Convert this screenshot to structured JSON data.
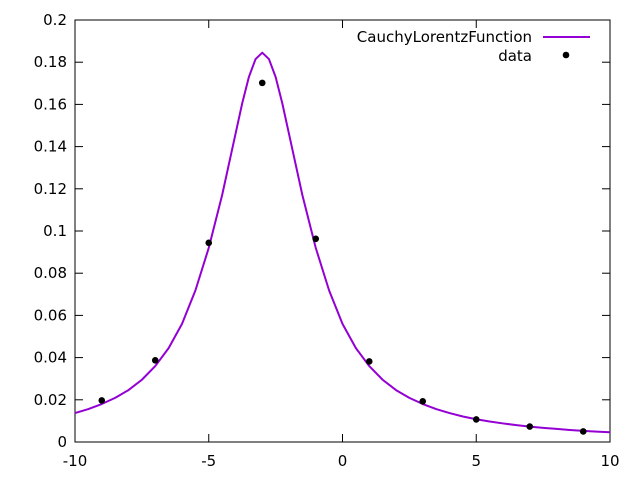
{
  "chart_data": {
    "type": "line+scatter",
    "xlim": [
      -10,
      10
    ],
    "ylim": [
      0,
      0.2
    ],
    "x_ticks": [
      "-10",
      "-5",
      "0",
      "5",
      "10"
    ],
    "y_ticks": [
      "0",
      "0.02",
      "0.04",
      "0.06",
      "0.08",
      "0.1",
      "0.12",
      "0.14",
      "0.16",
      "0.18",
      "0.2"
    ],
    "grid": false,
    "legend_position": "top-right",
    "series": [
      {
        "name": "CauchyLorentzFunction",
        "kind": "line",
        "color": "#9400d3",
        "x": [
          -10,
          -9.5,
          -9,
          -8.5,
          -8,
          -7.5,
          -7,
          -6.5,
          -6,
          -5.5,
          -5,
          -4.5,
          -4,
          -3.75,
          -3.5,
          -3.25,
          -3,
          -2.75,
          -2.5,
          -2.25,
          -2,
          -1.5,
          -1,
          -0.5,
          0,
          0.5,
          1,
          1.5,
          2,
          2.5,
          3,
          3.5,
          4,
          4.5,
          5,
          5.5,
          6,
          6.5,
          7,
          7.5,
          8,
          8.5,
          9,
          9.5,
          10
        ],
        "y": [
          0.0137,
          0.0156,
          0.018,
          0.0209,
          0.0246,
          0.0295,
          0.036,
          0.0445,
          0.056,
          0.0718,
          0.092,
          0.117,
          0.146,
          0.1605,
          0.173,
          0.1815,
          0.1845,
          0.1815,
          0.173,
          0.1605,
          0.146,
          0.117,
          0.092,
          0.0718,
          0.056,
          0.0445,
          0.036,
          0.0295,
          0.0246,
          0.0209,
          0.018,
          0.0156,
          0.0137,
          0.0121,
          0.0108,
          0.0097,
          0.0088,
          0.008,
          0.0073,
          0.0067,
          0.0062,
          0.0057,
          0.0053,
          0.0049,
          0.0046
        ]
      },
      {
        "name": "data",
        "kind": "scatter",
        "color": "#000000",
        "x": [
          -9,
          -7,
          -5,
          -3,
          -1,
          1,
          3,
          5,
          7,
          9
        ],
        "y": [
          0.0197,
          0.0387,
          0.0944,
          0.1702,
          0.0963,
          0.0382,
          0.0193,
          0.0107,
          0.0073,
          0.005
        ]
      }
    ]
  }
}
